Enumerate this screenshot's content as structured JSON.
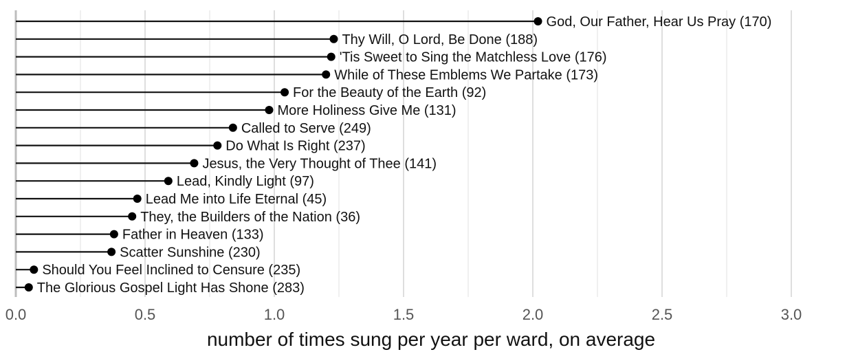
{
  "chart_data": {
    "type": "lollipop",
    "xlabel": "number of times sung per year per ward, on average",
    "xlim": [
      0,
      3.1
    ],
    "xticks": [
      "0.0",
      "0.5",
      "1.0",
      "1.5",
      "2.0",
      "2.5",
      "3.0"
    ],
    "tick_values": [
      0.0,
      0.5,
      1.0,
      1.5,
      2.0,
      2.5,
      3.0
    ],
    "grid": true,
    "points": [
      {
        "label": "God, Our Father, Hear Us Pray (170)",
        "value": 2.02
      },
      {
        "label": "Thy Will, O Lord, Be Done (188)",
        "value": 1.23
      },
      {
        "label": "'Tis Sweet to Sing the Matchless Love (176)",
        "value": 1.22
      },
      {
        "label": "While of These Emblems We Partake (173)",
        "value": 1.2
      },
      {
        "label": "For the Beauty of the Earth (92)",
        "value": 1.04
      },
      {
        "label": "More Holiness Give Me (131)",
        "value": 0.98
      },
      {
        "label": "Called to Serve (249)",
        "value": 0.84
      },
      {
        "label": "Do What Is Right (237)",
        "value": 0.78
      },
      {
        "label": "Jesus, the Very Thought of Thee (141)",
        "value": 0.69
      },
      {
        "label": "Lead, Kindly Light (97)",
        "value": 0.59
      },
      {
        "label": "Lead Me into Life Eternal (45)",
        "value": 0.47
      },
      {
        "label": "They, the Builders of the Nation (36)",
        "value": 0.45
      },
      {
        "label": "Father in Heaven (133)",
        "value": 0.38
      },
      {
        "label": "Scatter Sunshine (230)",
        "value": 0.37
      },
      {
        "label": "Should You Feel Inclined to Censure (235)",
        "value": 0.07
      },
      {
        "label": "The Glorious Gospel Light Has Shone (283)",
        "value": 0.05
      }
    ]
  }
}
